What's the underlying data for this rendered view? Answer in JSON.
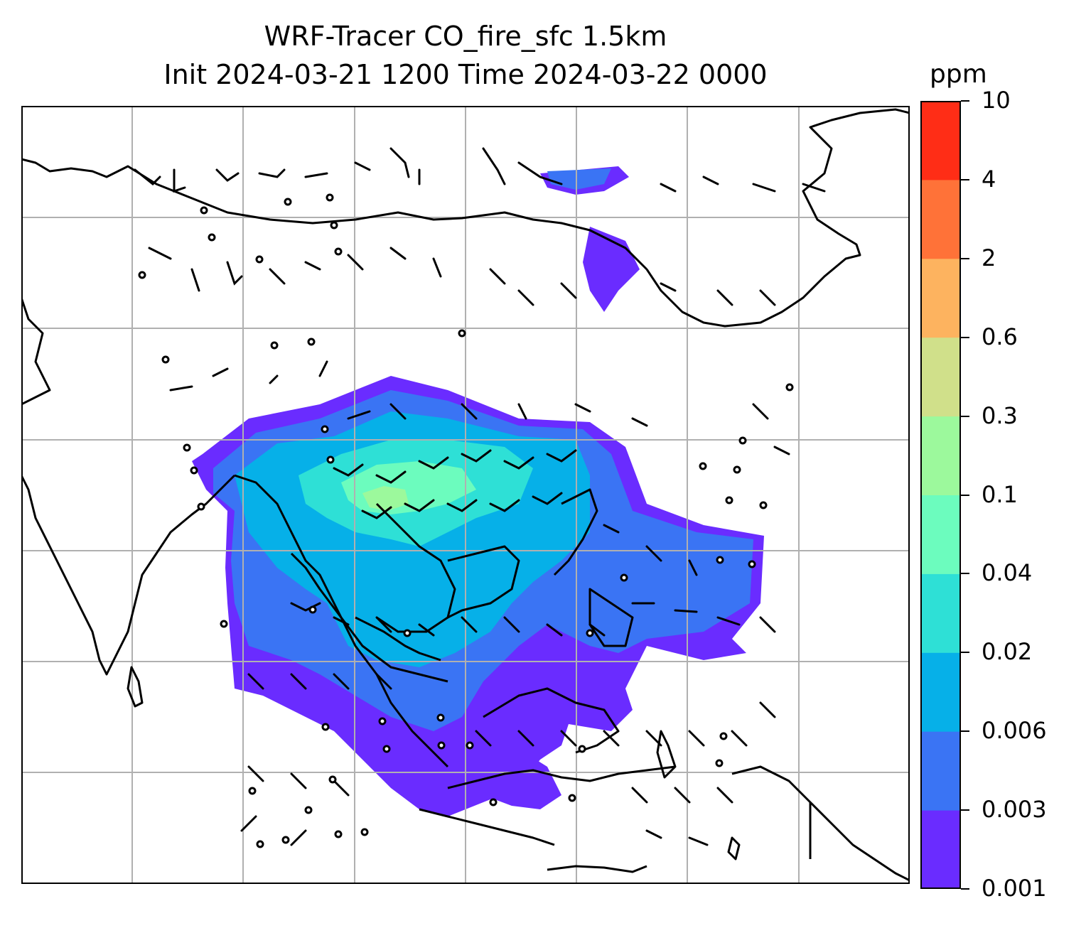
{
  "title_line1": "WRF-Tracer CO_fire_sfc 1.5km",
  "title_line2": "Init 2024-03-21 1200 Time 2024-03-22 0000",
  "colorbar": {
    "unit": "ppm",
    "levels": [
      "0.001",
      "0.003",
      "0.006",
      "0.02",
      "0.04",
      "0.1",
      "0.3",
      "0.6",
      "2",
      "4",
      "10"
    ],
    "colors": [
      "#6a2cff",
      "#3a74f4",
      "#06b0e8",
      "#2ee0d6",
      "#6cfcbe",
      "#9cf99c",
      "#d0e08a",
      "#fdb35f",
      "#ff7238",
      "#ff2d16"
    ]
  },
  "map": {
    "gridline_color": "#b0b0b0",
    "coastline_color": "#000000",
    "wind_barb_color": "#000000"
  }
}
